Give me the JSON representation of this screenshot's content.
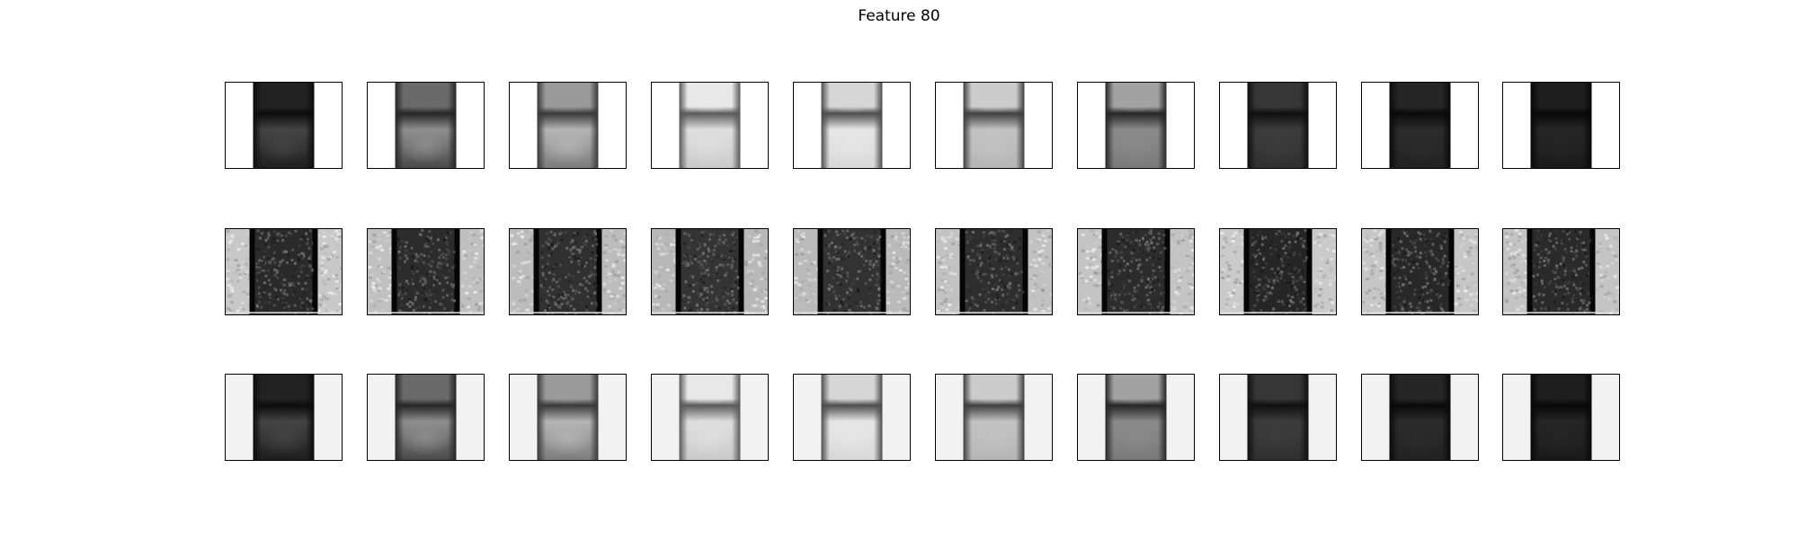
{
  "figure": {
    "title": "Feature 80"
  },
  "grid": {
    "rows": 3,
    "columns": 10
  },
  "rows": [
    {
      "panel_type": "smooth",
      "side_color": "#ffffff",
      "tiles": [
        {
          "top": "#222222",
          "mid": "#444444",
          "bot": "#1e1e1e",
          "edge": "#0c0c0c"
        },
        {
          "top": "#6a6a6a",
          "mid": "#8e8e8e",
          "bot": "#4a4a4a",
          "edge": "#262626"
        },
        {
          "top": "#9a9a9a",
          "mid": "#b4b4b4",
          "bot": "#7c7c7c",
          "edge": "#3a3a3a"
        },
        {
          "top": "#e8e8e8",
          "mid": "#dedede",
          "bot": "#cacaca",
          "edge": "#5a5a5a"
        },
        {
          "top": "#d6d6d6",
          "mid": "#e6e6e6",
          "bot": "#d8d8d8",
          "edge": "#4e4e4e"
        },
        {
          "top": "#cccccc",
          "mid": "#c2c2c2",
          "bot": "#b6b6b6",
          "edge": "#404040"
        },
        {
          "top": "#a2a2a2",
          "mid": "#8a8a8a",
          "bot": "#7a7a7a",
          "edge": "#262626"
        },
        {
          "top": "#363636",
          "mid": "#3c3c3c",
          "bot": "#303030",
          "edge": "#101010"
        },
        {
          "top": "#262626",
          "mid": "#2c2c2c",
          "bot": "#222222",
          "edge": "#0a0a0a"
        },
        {
          "top": "#1e1e1e",
          "mid": "#262626",
          "bot": "#1a1a1a",
          "edge": "#080808"
        }
      ]
    },
    {
      "panel_type": "noisy",
      "side_color": "#c4c4c4",
      "tiles": [
        {
          "center": "#2a2a2a",
          "side": "#c8c8c8"
        },
        {
          "center": "#2c2c2c",
          "side": "#c0c0c0"
        },
        {
          "center": "#303030",
          "side": "#bcbcbc"
        },
        {
          "center": "#343434",
          "side": "#b8b8b8"
        },
        {
          "center": "#323232",
          "side": "#bababa"
        },
        {
          "center": "#2e2e2e",
          "side": "#c2c2c2"
        },
        {
          "center": "#2c2c2c",
          "side": "#c4c4c4"
        },
        {
          "center": "#262626",
          "side": "#cacaca"
        },
        {
          "center": "#282828",
          "side": "#c6c6c6"
        },
        {
          "center": "#2a2a2a",
          "side": "#c4c4c4"
        }
      ]
    },
    {
      "panel_type": "smooth",
      "side_color": "#f2f2f2",
      "tiles": [
        {
          "top": "#222222",
          "mid": "#444444",
          "bot": "#1e1e1e",
          "edge": "#0c0c0c"
        },
        {
          "top": "#6a6a6a",
          "mid": "#8e8e8e",
          "bot": "#4a4a4a",
          "edge": "#262626"
        },
        {
          "top": "#9a9a9a",
          "mid": "#b4b4b4",
          "bot": "#7c7c7c",
          "edge": "#3a3a3a"
        },
        {
          "top": "#e8e8e8",
          "mid": "#dedede",
          "bot": "#cacaca",
          "edge": "#5a5a5a"
        },
        {
          "top": "#d6d6d6",
          "mid": "#e6e6e6",
          "bot": "#d8d8d8",
          "edge": "#4e4e4e"
        },
        {
          "top": "#cccccc",
          "mid": "#c2c2c2",
          "bot": "#b6b6b6",
          "edge": "#404040"
        },
        {
          "top": "#a2a2a2",
          "mid": "#8a8a8a",
          "bot": "#7a7a7a",
          "edge": "#262626"
        },
        {
          "top": "#363636",
          "mid": "#3c3c3c",
          "bot": "#303030",
          "edge": "#101010"
        },
        {
          "top": "#262626",
          "mid": "#2c2c2c",
          "bot": "#222222",
          "edge": "#0a0a0a"
        },
        {
          "top": "#1e1e1e",
          "mid": "#262626",
          "bot": "#1a1a1a",
          "edge": "#080808"
        }
      ]
    }
  ]
}
